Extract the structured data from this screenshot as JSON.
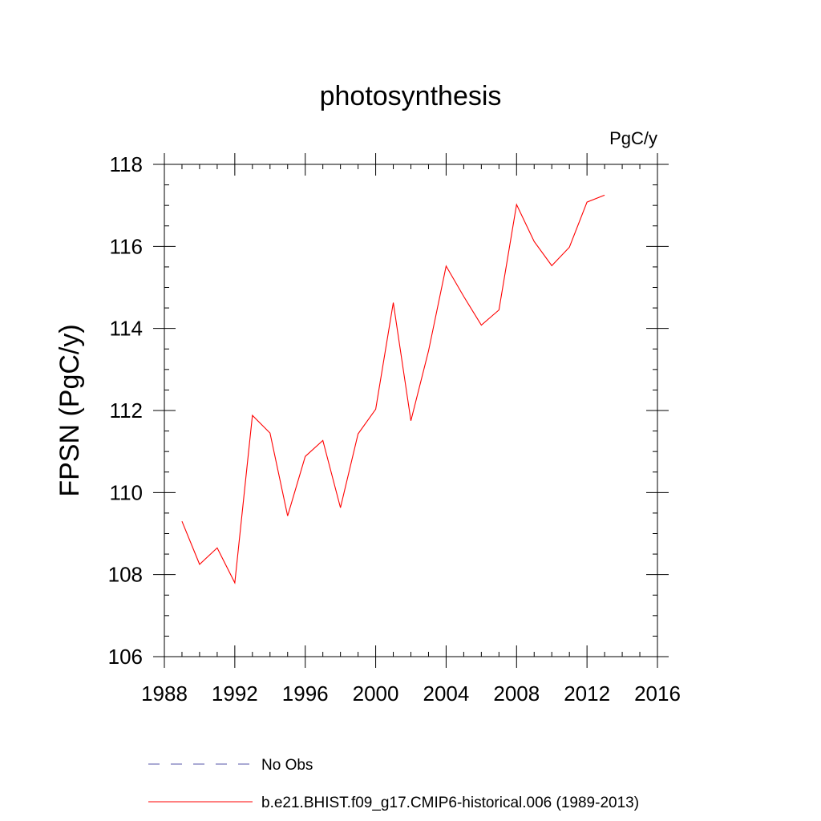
{
  "chart_data": {
    "type": "line",
    "title": "photosynthesis",
    "units": "PgC/y",
    "xlabel": "",
    "ylabel": "FPSN  (PgC/y)",
    "xlim": [
      1988,
      2016
    ],
    "ylim": [
      106,
      118
    ],
    "xticks": [
      "1988",
      "1992",
      "1996",
      "2000",
      "2004",
      "2008",
      "2012",
      "2016"
    ],
    "yticks": [
      "106",
      "108",
      "110",
      "112",
      "114",
      "116",
      "118"
    ],
    "series": [
      {
        "name": "No Obs",
        "color": "#5555aa",
        "dash": "dashed",
        "x": [],
        "values": []
      },
      {
        "name": "b.e21.BHIST.f09_g17.CMIP6-historical.006 (1989-2013)",
        "color": "#ff0000",
        "dash": "solid",
        "x": [
          1989,
          1990,
          1991,
          1992,
          1993,
          1994,
          1995,
          1996,
          1997,
          1998,
          1999,
          2000,
          2001,
          2002,
          2003,
          2004,
          2005,
          2006,
          2007,
          2008,
          2009,
          2010,
          2011,
          2012,
          2013
        ],
        "values": [
          109.3,
          108.25,
          108.65,
          107.8,
          111.88,
          111.45,
          109.43,
          110.88,
          111.27,
          109.63,
          111.43,
          112.03,
          114.63,
          111.75,
          113.45,
          115.52,
          114.78,
          114.08,
          114.45,
          117.02,
          116.12,
          115.53,
          115.98,
          117.08,
          117.25
        ]
      }
    ],
    "legend_position": "bottom"
  }
}
